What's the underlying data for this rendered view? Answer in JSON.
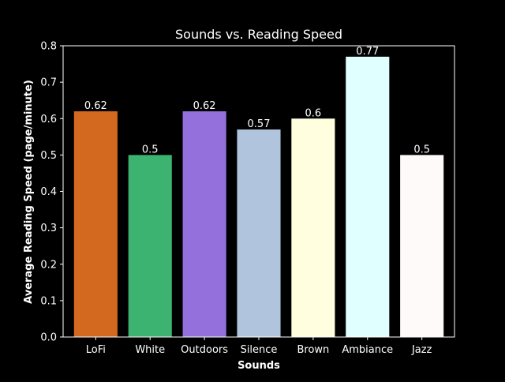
{
  "chart_data": {
    "type": "bar",
    "title": "Sounds vs. Reading Speed",
    "xlabel": "Sounds",
    "ylabel": "Average Reading Speed (page/minute)",
    "categories": [
      "LoFi",
      "White",
      "Outdoors",
      "Silence",
      "Brown",
      "Ambiance",
      "Jazz"
    ],
    "values": [
      0.62,
      0.5,
      0.62,
      0.57,
      0.6,
      0.77,
      0.5
    ],
    "data_labels": [
      "0.62",
      "0.5",
      "0.62",
      "0.57",
      "0.6",
      "0.77",
      "0.5"
    ],
    "bar_colors": [
      "#d2691e",
      "#3cb371",
      "#9370db",
      "#b0c4de",
      "#ffffe0",
      "#e0ffff",
      "#fffafa"
    ],
    "ylim": [
      0,
      0.8
    ],
    "yticks": [
      0.0,
      0.1,
      0.2,
      0.3,
      0.4,
      0.5,
      0.6,
      0.7,
      0.8
    ],
    "ytick_labels": [
      "0.0",
      "0.1",
      "0.2",
      "0.3",
      "0.4",
      "0.5",
      "0.6",
      "0.7",
      "0.8"
    ],
    "grid": false,
    "legend": "none",
    "background_color": "#000000",
    "foreground_color": "#ffffff"
  }
}
